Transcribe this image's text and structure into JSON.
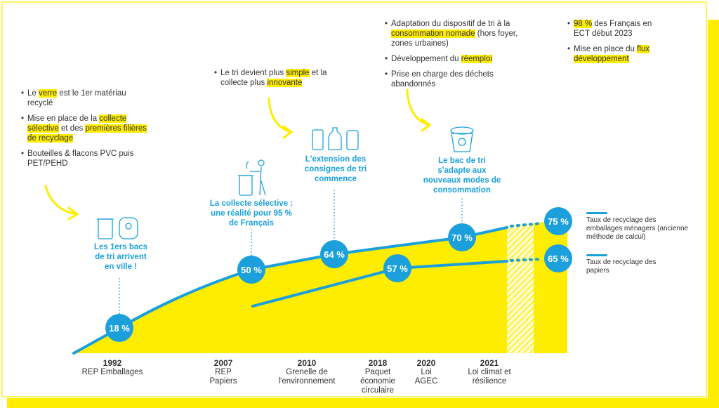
{
  "colors": {
    "yellow": "#ffed00",
    "blue": "#1ba0dc"
  },
  "bullets": {
    "left": [
      [
        {
          "t": "Le "
        },
        {
          "t": "verre",
          "h": true
        },
        {
          "t": " est le 1er matériau recyclé"
        }
      ],
      [
        {
          "t": "Mise en place de la "
        },
        {
          "t": "collecte sélective",
          "h": true
        },
        {
          "t": " et des "
        },
        {
          "t": "premières filières de recyclage",
          "h": true
        }
      ],
      [
        {
          "t": "Bouteilles & flacons PVC puis PET/PEHD"
        }
      ]
    ],
    "middle": [
      [
        {
          "t": "Le tri devient plus "
        },
        {
          "t": "simple",
          "h": true
        },
        {
          "t": " et la collecte plus "
        },
        {
          "t": "innovante",
          "h": true
        }
      ]
    ],
    "right": [
      [
        {
          "t": "Adaptation du dispositif de tri à la "
        },
        {
          "t": "consommation nomade",
          "h": true
        },
        {
          "t": " (hors foyer, zones urbaines)"
        }
      ],
      [
        {
          "t": "Développement du "
        },
        {
          "t": "réemploi",
          "h": true
        }
      ],
      [
        {
          "t": "Prise en charge des déchets abandonnés"
        }
      ]
    ],
    "far_right": [
      [
        {
          "t": "98 %",
          "h": true
        },
        {
          "t": " des Français en ECT début 2023"
        }
      ],
      [
        {
          "t": "Mise en place du "
        },
        {
          "t": "flux développement",
          "h": true
        }
      ]
    ]
  },
  "captions": [
    {
      "text": "Les 1ers bacs de tri arrivent en ville !",
      "icon": "bins-icon"
    },
    {
      "text": "La collecte sélective : une réalité pour 95 % de Français",
      "icon": "person-throwing-trash-icon"
    },
    {
      "text": "L'extension des consignes de tri commence",
      "icon": "packaging-icon"
    },
    {
      "text": "Le bac de tri s'adapte aux nouveaux modes de consommation",
      "icon": "recycling-bin-icon"
    }
  ],
  "timeline": [
    {
      "year": "1992",
      "label": "REP Emballages"
    },
    {
      "year": "2007",
      "label": "REP Papiers"
    },
    {
      "year": "2010",
      "label": "Grenelle de l'environnement"
    },
    {
      "year": "2018",
      "label": "Paquet économie circulaire"
    },
    {
      "year": "2020",
      "label": "Loi AGEC"
    },
    {
      "year": "2021",
      "label": "Loi climat et résilience"
    }
  ],
  "legend": [
    {
      "label": "Taux de recyclage des emballages ménagers (ancienne méthode de calcul)"
    },
    {
      "label": "Taux de recyclage des papiers"
    }
  ],
  "chart_data": {
    "type": "line",
    "series": [
      {
        "name": "Taux de recyclage des emballages ménagers (ancienne méthode de calcul)",
        "points": [
          {
            "x": "1992",
            "y": 18,
            "label": "18 %"
          },
          {
            "x": "2007",
            "y": 50,
            "label": "50 %"
          },
          {
            "x": "2010",
            "y": 64,
            "label": "64 %"
          },
          {
            "x": "2020",
            "y": 70,
            "label": "70 %"
          },
          {
            "x": "2023",
            "y": 75,
            "label": "75 %"
          }
        ]
      },
      {
        "name": "Taux de recyclage des papiers",
        "points": [
          {
            "x": "2018",
            "y": 57,
            "label": "57 %"
          },
          {
            "x": "2023",
            "y": 65,
            "label": "65 %"
          }
        ]
      }
    ]
  }
}
